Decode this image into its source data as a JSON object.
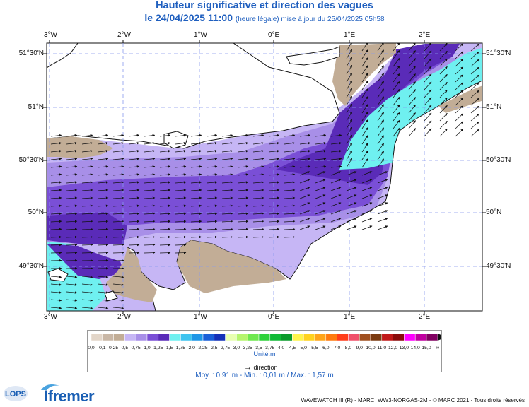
{
  "header": {
    "title": "Hauteur significative et direction des vagues",
    "subtitle_main": "le 24/04/2025 11:00",
    "subtitle_note": "(heure légale) mise à jour du 25/04/2025 05h58"
  },
  "map": {
    "lon_labels": [
      "3°W",
      "2°W",
      "1°W",
      "0°E",
      "1°E",
      "2°E"
    ],
    "lat_labels": [
      "51°30'N",
      "51°N",
      "50°30'N",
      "50°N",
      "49°30'N"
    ],
    "colors": {
      "land": "#c2ad96",
      "c_0_5": "#c6b6f5",
      "c_0_75": "#a88fe8",
      "c_1_0": "#7a4fd6",
      "c_1_25": "#5a2bb8",
      "c_1_5": "#6ff0f0",
      "grid": "#8899ee"
    }
  },
  "legend": {
    "labels": [
      "0,0",
      "0,1",
      "0,25",
      "0,5",
      "0,75",
      "1,0",
      "1,25",
      "1,5",
      "1,75",
      "2,0",
      "2,25",
      "2,5",
      "2,75",
      "3,0",
      "3,25",
      "3,5",
      "3,75",
      "4,0",
      "4,5",
      "5,0",
      "5,5",
      "6,0",
      "7,0",
      "8,0",
      "9,0",
      "10,0",
      "11,0",
      "12,0",
      "13,0",
      "14,0",
      "15,0",
      "∞"
    ],
    "colors": [
      "#e3d6c9",
      "#c9b7a6",
      "#c2ad96",
      "#c6b6f5",
      "#a88fe8",
      "#7a4fd6",
      "#5a2bb8",
      "#6ff0f0",
      "#3ec3ef",
      "#1e96e6",
      "#1a5fd8",
      "#1430b8",
      "#e8ffb0",
      "#b6f56d",
      "#6fe84f",
      "#2fd23a",
      "#10b935",
      "#0a9a2a",
      "#fff44a",
      "#ffd21f",
      "#ffa51a",
      "#ff7a0f",
      "#ff3d1a",
      "#f0506a",
      "#a05020",
      "#7a3a10",
      "#c01818",
      "#8a0a0a",
      "#ff00ff",
      "#c000a0",
      "#800060"
    ],
    "unit": "Unité:m",
    "direction": "direction",
    "stats": "Moy. : 0,91 m   -   Min. : 0,01 m / Max. : 1,57 m"
  },
  "footer": {
    "text": "WAVEWATCH III (R) - MARC_WW3-NORGAS-2M - © MARC 2021 - Tous droits réservés",
    "logo_ifremer": "Ifremer",
    "logo_lops": "LOPS"
  }
}
